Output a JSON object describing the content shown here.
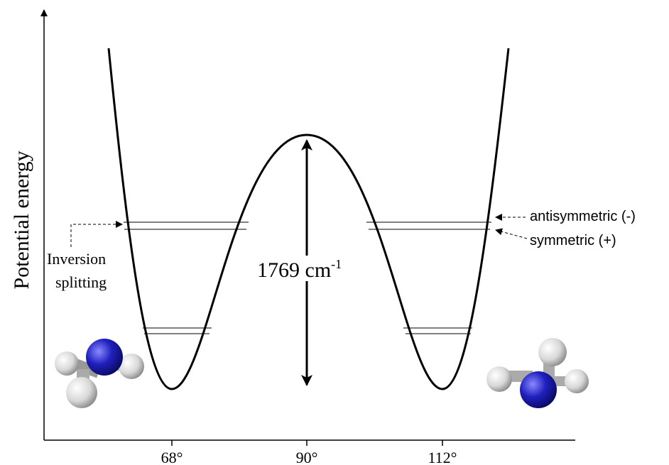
{
  "y_axis_label": "Potential energy",
  "x_ticks": [
    "68°",
    "90°",
    "112°"
  ],
  "barrier": {
    "text": "1769 cm",
    "superscript": "-1"
  },
  "annotations": {
    "antisymmetric": "antisymmetric (-)",
    "symmetric": "symmetric (+)",
    "inversion": [
      "Inversion",
      "splitting"
    ]
  }
}
